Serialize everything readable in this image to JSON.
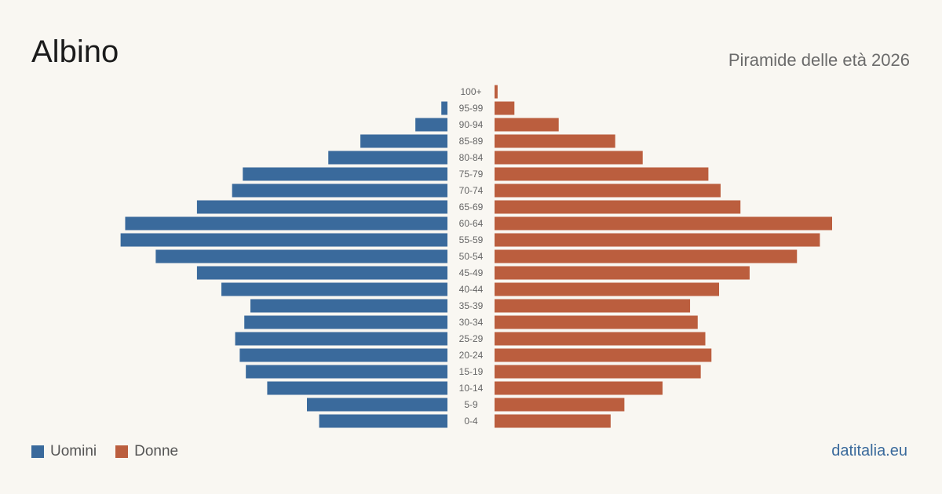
{
  "header": {
    "title": "Albino",
    "subtitle": "Piramide delle età 2026"
  },
  "legend": {
    "men_label": "Uomini",
    "women_label": "Donne"
  },
  "footer": {
    "site": "datitalia.eu"
  },
  "colors": {
    "men": "#3a6a9c",
    "women": "#bb5e3e",
    "background": "#f9f7f2",
    "tick_label": "#666666"
  },
  "chart_data": {
    "type": "bar",
    "orientation": "horizontal",
    "layout": "population-pyramid",
    "categories": [
      "100+",
      "95-99",
      "90-94",
      "85-89",
      "80-84",
      "75-79",
      "70-74",
      "65-69",
      "60-64",
      "55-59",
      "50-54",
      "45-49",
      "40-44",
      "35-39",
      "30-34",
      "25-29",
      "20-24",
      "15-19",
      "10-14",
      "5-9",
      "0-4"
    ],
    "series": [
      {
        "name": "Uomini",
        "color": "#3a6a9c",
        "values": [
          0,
          4,
          21,
          57,
          78,
          134,
          141,
          164,
          211,
          214,
          191,
          164,
          148,
          129,
          133,
          139,
          136,
          132,
          118,
          92,
          84
        ]
      },
      {
        "name": "Donne",
        "color": "#bb5e3e",
        "values": [
          2,
          13,
          42,
          79,
          97,
          140,
          148,
          161,
          221,
          213,
          198,
          167,
          147,
          128,
          133,
          138,
          142,
          135,
          110,
          85,
          76
        ]
      }
    ],
    "title": "Albino",
    "subtitle": "Piramide delle età 2026",
    "legend_position": "bottom-left",
    "grid": false
  }
}
